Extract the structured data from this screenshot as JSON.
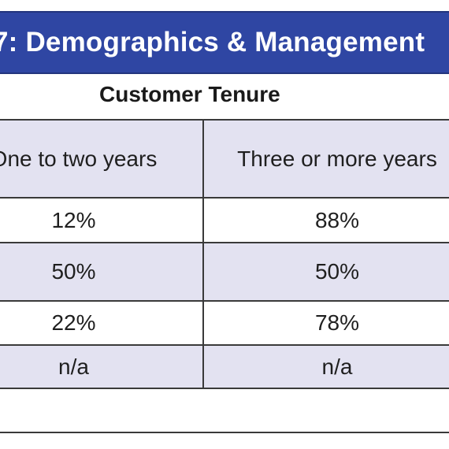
{
  "title": "7: Demographics & Management",
  "subheader": "Customer Tenure",
  "table": {
    "headers": [
      "One to two years",
      "Three or more years"
    ],
    "rows": [
      [
        "12%",
        "88%"
      ],
      [
        "50%",
        "50%"
      ],
      [
        "22%",
        "78%"
      ],
      [
        "n/a",
        "n/a"
      ]
    ]
  },
  "colors": {
    "title_bar": "#2f46a3",
    "header_fill": "#e3e2f1",
    "row_shaded": "#e3e2f1",
    "rule": "#3a3a3a"
  }
}
